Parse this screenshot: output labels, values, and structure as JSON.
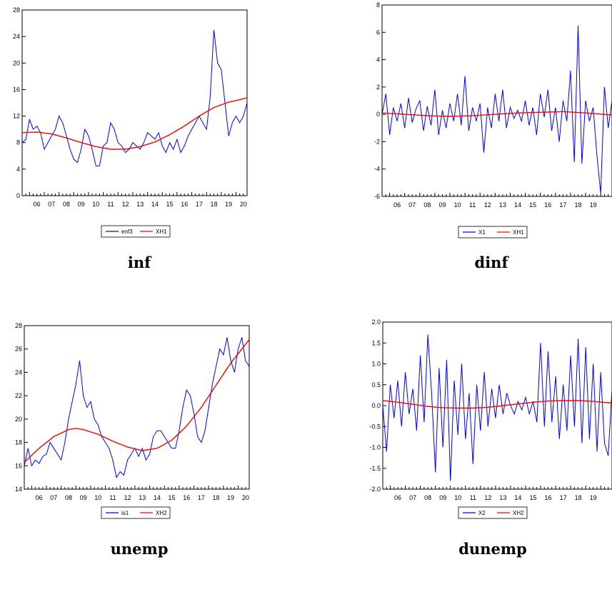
{
  "chart_data": [
    {
      "type": "line",
      "caption": "inf",
      "x_ticks": [
        "06",
        "07",
        "08",
        "09",
        "10",
        "11",
        "12",
        "13",
        "14",
        "15",
        "16",
        "17",
        "18",
        "19",
        "20"
      ],
      "xlim": [
        2005.5,
        2020.75
      ],
      "ylim": [
        0,
        28
      ],
      "y_ticks": [
        "0",
        "4",
        "8",
        "12",
        "16",
        "20",
        "24",
        "28"
      ],
      "legend_placement": "bottom-center",
      "series": [
        {
          "name": "enf3",
          "color": "#0000ff",
          "x": [
            2005.5,
            2005.75,
            2006.0,
            2006.25,
            2006.5,
            2006.75,
            2007.0,
            2007.25,
            2007.5,
            2007.75,
            2008.0,
            2008.25,
            2008.5,
            2008.75,
            2009.0,
            2009.25,
            2009.5,
            2009.75,
            2010.0,
            2010.25,
            2010.5,
            2010.75,
            2011.0,
            2011.25,
            2011.5,
            2011.75,
            2012.0,
            2012.25,
            2012.5,
            2012.75,
            2013.0,
            2013.25,
            2013.5,
            2013.75,
            2014.0,
            2014.25,
            2014.5,
            2014.75,
            2015.0,
            2015.25,
            2015.5,
            2015.75,
            2016.0,
            2016.25,
            2016.5,
            2016.75,
            2017.0,
            2017.25,
            2017.5,
            2017.75,
            2018.0,
            2018.1,
            2018.25,
            2018.5,
            2018.75,
            2019.0,
            2019.25,
            2019.5,
            2019.75,
            2020.0,
            2020.25,
            2020.5,
            2020.75
          ],
          "y": [
            8.0,
            8.5,
            11.5,
            10.0,
            10.5,
            9.5,
            7.0,
            8.0,
            9.0,
            10.0,
            12.0,
            11.0,
            9.0,
            7.0,
            5.5,
            5.0,
            7.0,
            10.0,
            9.0,
            7.0,
            4.5,
            4.5,
            7.5,
            8.0,
            11.0,
            10.0,
            8.0,
            7.5,
            6.5,
            7.0,
            8.0,
            7.5,
            7.0,
            8.0,
            9.5,
            9.0,
            8.5,
            9.5,
            7.5,
            6.5,
            8.0,
            7.0,
            8.5,
            6.5,
            7.5,
            9.0,
            10.0,
            11.0,
            12.0,
            11.0,
            10.0,
            12.0,
            15.0,
            25.0,
            20.0,
            19.0,
            14.0,
            9.0,
            11.0,
            12.0,
            11.0,
            12.0,
            14.0
          ]
        },
        {
          "name": "XH1",
          "color": "#ff0000",
          "x": [
            2005.5,
            2006.5,
            2007.5,
            2008.5,
            2009.5,
            2010.5,
            2011.5,
            2012.5,
            2013.5,
            2014.5,
            2015.5,
            2016.5,
            2017.5,
            2018.5,
            2019.5,
            2020.5,
            2020.75
          ],
          "y": [
            9.5,
            9.6,
            9.3,
            8.7,
            8.0,
            7.4,
            7.0,
            7.0,
            7.4,
            8.1,
            9.2,
            10.5,
            12.0,
            13.3,
            14.1,
            14.6,
            14.8
          ]
        }
      ]
    },
    {
      "type": "line",
      "caption": "dinf",
      "x_ticks": [
        "06",
        "07",
        "08",
        "09",
        "10",
        "11",
        "12",
        "13",
        "14",
        "15",
        "16",
        "17",
        "18",
        "19",
        "20"
      ],
      "xlim": [
        2005.5,
        2020.75
      ],
      "ylim": [
        -6,
        8
      ],
      "y_ticks": [
        "-6",
        "-4",
        "-2",
        "0",
        "2",
        "4",
        "6",
        "8"
      ],
      "legend_placement": "bottom-center",
      "series": [
        {
          "name": "X1",
          "color": "#0000ff",
          "x": [
            2005.5,
            2005.75,
            2006.0,
            2006.25,
            2006.5,
            2006.75,
            2007.0,
            2007.25,
            2007.5,
            2007.75,
            2008.0,
            2008.25,
            2008.5,
            2008.75,
            2009.0,
            2009.25,
            2009.5,
            2009.75,
            2010.0,
            2010.25,
            2010.5,
            2010.75,
            2011.0,
            2011.25,
            2011.5,
            2011.75,
            2012.0,
            2012.25,
            2012.5,
            2012.75,
            2013.0,
            2013.25,
            2013.5,
            2013.75,
            2014.0,
            2014.25,
            2014.5,
            2014.75,
            2015.0,
            2015.25,
            2015.5,
            2015.75,
            2016.0,
            2016.25,
            2016.5,
            2016.75,
            2017.0,
            2017.25,
            2017.5,
            2017.75,
            2018.0,
            2018.25,
            2018.5,
            2018.75,
            2019.0,
            2019.25,
            2019.5,
            2019.75,
            2020.0,
            2020.25,
            2020.5,
            2020.75
          ],
          "y": [
            0.0,
            1.5,
            -1.5,
            0.5,
            -0.5,
            0.8,
            -1.0,
            1.2,
            -0.6,
            0.4,
            1.0,
            -1.2,
            0.6,
            -0.8,
            1.8,
            -1.5,
            0.3,
            -1.0,
            0.8,
            -0.5,
            1.5,
            -0.8,
            2.8,
            -1.2,
            0.5,
            -0.5,
            0.8,
            -2.8,
            0.5,
            -1.0,
            1.5,
            -0.5,
            1.8,
            -1.0,
            0.5,
            -0.3,
            0.3,
            -0.5,
            1.0,
            -0.8,
            0.5,
            -1.5,
            1.5,
            -0.2,
            1.8,
            -1.2,
            0.5,
            -2.0,
            1.0,
            -0.5,
            3.2,
            -3.5,
            6.5,
            -3.6,
            1.0,
            -0.5,
            0.5,
            -3.0,
            -5.8,
            2.0,
            -1.0,
            1.0
          ]
        },
        {
          "name": "XH1",
          "color": "#ff0000",
          "x": [
            2005.5,
            2007.0,
            2008.5,
            2010.0,
            2011.5,
            2013.0,
            2014.5,
            2016.0,
            2017.5,
            2019.0,
            2020.75
          ],
          "y": [
            0.1,
            0.0,
            -0.1,
            -0.15,
            -0.1,
            0.0,
            0.1,
            0.15,
            0.2,
            0.1,
            -0.05
          ]
        }
      ]
    },
    {
      "type": "line",
      "caption": "unemp",
      "x_ticks": [
        "06",
        "07",
        "08",
        "09",
        "10",
        "11",
        "12",
        "13",
        "14",
        "15",
        "16",
        "17",
        "18",
        "19",
        "20"
      ],
      "xlim": [
        2005.5,
        2020.75
      ],
      "ylim": [
        14,
        28
      ],
      "y_ticks": [
        "14",
        "16",
        "18",
        "20",
        "22",
        "24",
        "26",
        "28"
      ],
      "legend_placement": "bottom-center",
      "series": [
        {
          "name": "is1",
          "color": "#0000ff",
          "x": [
            2005.5,
            2005.75,
            2006.0,
            2006.25,
            2006.5,
            2006.75,
            2007.0,
            2007.25,
            2007.5,
            2007.75,
            2008.0,
            2008.25,
            2008.5,
            2008.75,
            2009.0,
            2009.25,
            2009.5,
            2009.75,
            2010.0,
            2010.25,
            2010.5,
            2010.75,
            2011.0,
            2011.25,
            2011.5,
            2011.75,
            2012.0,
            2012.25,
            2012.5,
            2012.75,
            2013.0,
            2013.25,
            2013.5,
            2013.75,
            2014.0,
            2014.25,
            2014.5,
            2014.75,
            2015.0,
            2015.25,
            2015.5,
            2015.75,
            2016.0,
            2016.25,
            2016.5,
            2016.75,
            2017.0,
            2017.25,
            2017.5,
            2017.75,
            2018.0,
            2018.25,
            2018.5,
            2018.75,
            2019.0,
            2019.25,
            2019.5,
            2019.75,
            2020.0,
            2020.25,
            2020.5,
            2020.75
          ],
          "y": [
            16.0,
            17.5,
            16.0,
            16.5,
            16.2,
            16.8,
            17.0,
            18.0,
            17.5,
            17.0,
            16.5,
            18.0,
            20.0,
            21.5,
            23.0,
            25.0,
            22.0,
            21.0,
            21.5,
            20.0,
            19.5,
            18.5,
            18.0,
            17.5,
            16.5,
            15.0,
            15.5,
            15.2,
            16.5,
            17.0,
            17.5,
            16.8,
            17.5,
            16.5,
            17.0,
            18.5,
            19.0,
            19.0,
            18.5,
            18.0,
            17.5,
            17.5,
            19.0,
            21.0,
            22.5,
            22.0,
            20.5,
            18.5,
            18.0,
            19.0,
            21.0,
            23.0,
            24.5,
            26.0,
            25.5,
            27.0,
            25.0,
            24.0,
            26.0,
            27.0,
            25.0,
            24.5
          ]
        },
        {
          "name": "XH2",
          "color": "#ff0000",
          "x": [
            2005.5,
            2006.5,
            2007.5,
            2008.5,
            2009.0,
            2009.5,
            2010.5,
            2011.5,
            2012.5,
            2013.5,
            2014.5,
            2015.5,
            2016.5,
            2017.5,
            2018.5,
            2019.5,
            2020.75
          ],
          "y": [
            16.3,
            17.5,
            18.5,
            19.1,
            19.2,
            19.1,
            18.7,
            18.1,
            17.6,
            17.3,
            17.5,
            18.2,
            19.4,
            21.0,
            22.9,
            24.8,
            26.8
          ]
        }
      ]
    },
    {
      "type": "line",
      "caption": "dunemp",
      "x_ticks": [
        "06",
        "07",
        "08",
        "09",
        "10",
        "11",
        "12",
        "13",
        "14",
        "15",
        "16",
        "17",
        "18",
        "19",
        "20"
      ],
      "xlim": [
        2005.5,
        2020.75
      ],
      "ylim": [
        -2.0,
        2.0
      ],
      "y_ticks": [
        "-2.0",
        "-1.5",
        "-1.0",
        "-0.5",
        "0.0",
        "0.5",
        "1.0",
        "1.5",
        "2.0"
      ],
      "legend_placement": "bottom-center",
      "series": [
        {
          "name": "X2",
          "color": "#0000ff",
          "x": [
            2005.5,
            2005.75,
            2006.0,
            2006.25,
            2006.5,
            2006.75,
            2007.0,
            2007.25,
            2007.5,
            2007.75,
            2008.0,
            2008.25,
            2008.5,
            2008.75,
            2009.0,
            2009.25,
            2009.5,
            2009.75,
            2010.0,
            2010.25,
            2010.5,
            2010.75,
            2011.0,
            2011.25,
            2011.5,
            2011.75,
            2012.0,
            2012.25,
            2012.5,
            2012.75,
            2013.0,
            2013.25,
            2013.5,
            2013.75,
            2014.0,
            2014.25,
            2014.5,
            2014.75,
            2015.0,
            2015.25,
            2015.5,
            2015.75,
            2016.0,
            2016.25,
            2016.5,
            2016.75,
            2017.0,
            2017.25,
            2017.5,
            2017.75,
            2018.0,
            2018.25,
            2018.5,
            2018.75,
            2019.0,
            2019.25,
            2019.5,
            2019.75,
            2020.0,
            2020.25,
            2020.5,
            2020.75
          ],
          "y": [
            0.0,
            -1.1,
            0.5,
            -0.3,
            0.6,
            -0.5,
            0.8,
            -0.2,
            0.4,
            -0.6,
            1.2,
            -0.4,
            1.7,
            0.3,
            -1.6,
            0.9,
            -1.0,
            1.1,
            -1.8,
            0.6,
            -0.7,
            1.0,
            -0.8,
            0.3,
            -1.4,
            0.5,
            -0.6,
            0.8,
            -0.5,
            0.4,
            -0.3,
            0.5,
            -0.2,
            0.3,
            0.0,
            -0.2,
            0.1,
            -0.1,
            0.2,
            -0.2,
            0.1,
            -0.4,
            1.5,
            -0.5,
            1.3,
            -0.4,
            0.7,
            -0.8,
            0.5,
            -0.6,
            1.2,
            -0.5,
            1.6,
            -0.9,
            1.4,
            -0.8,
            1.0,
            -1.1,
            0.8,
            -0.9,
            -1.2,
            0.4
          ]
        },
        {
          "name": "XH2",
          "color": "#ff0000",
          "x": [
            2005.5,
            2006.5,
            2007.5,
            2008.5,
            2009.5,
            2010.5,
            2011.5,
            2012.5,
            2013.5,
            2014.5,
            2015.5,
            2016.5,
            2017.5,
            2018.5,
            2019.5,
            2020.75
          ],
          "y": [
            0.12,
            0.08,
            0.03,
            -0.02,
            -0.05,
            -0.06,
            -0.06,
            -0.04,
            0.0,
            0.04,
            0.08,
            0.11,
            0.12,
            0.12,
            0.1,
            0.06
          ]
        }
      ]
    }
  ]
}
